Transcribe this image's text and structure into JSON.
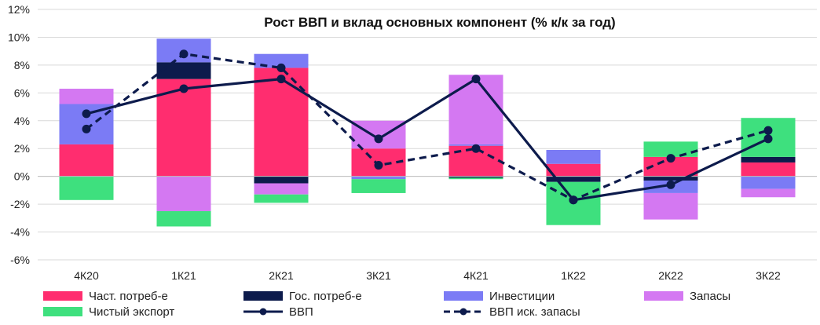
{
  "chart_data": {
    "type": "bar",
    "title": "Рост ВВП и вклад основных компонент (% к/к за год)",
    "categories": [
      "4К20",
      "1К21",
      "2К21",
      "3К21",
      "4К21",
      "1К22",
      "2К22",
      "3К22"
    ],
    "ylim": [
      -6,
      12
    ],
    "yticks": [
      -6,
      -4,
      -2,
      0,
      2,
      4,
      6,
      8,
      10,
      12
    ],
    "ytick_labels": [
      "-6%",
      "-4%",
      "-2%",
      "0%",
      "2%",
      "4%",
      "6%",
      "8%",
      "10%",
      "12%"
    ],
    "stacked": true,
    "grid": true,
    "legend_position": "bottom",
    "bar_series": [
      {
        "name": "Част. потреб-е",
        "color": "#ff2d6f",
        "values": [
          2.3,
          7.0,
          7.8,
          2.0,
          2.2,
          0.9,
          1.4,
          1.0
        ]
      },
      {
        "name": "Гос. потреб-е",
        "color": "#0d1b4c",
        "values": [
          0.0,
          1.2,
          -0.5,
          0.0,
          -0.1,
          -0.4,
          -0.3,
          0.4
        ]
      },
      {
        "name": "Инвестиции",
        "color": "#7b7bf5",
        "values": [
          2.9,
          1.7,
          1.0,
          -0.2,
          0.1,
          1.0,
          -0.9,
          -0.9
        ]
      },
      {
        "name": "Запасы",
        "color": "#d478f2",
        "values": [
          1.1,
          -2.5,
          -0.8,
          2.0,
          5.0,
          0.0,
          -1.9,
          -0.6
        ]
      },
      {
        "name": "Чистый экспорт",
        "color": "#3ee07e",
        "values": [
          -1.7,
          -1.1,
          -0.6,
          -1.0,
          -0.1,
          -3.1,
          1.1,
          2.8
        ]
      }
    ],
    "line_series": [
      {
        "name": "ВВП",
        "color": "#0d1b4c",
        "style": "solid",
        "values": [
          4.5,
          6.3,
          7.0,
          2.7,
          7.0,
          -1.7,
          -0.6,
          2.7
        ]
      },
      {
        "name": "ВВП иск. запасы",
        "color": "#0d1b4c",
        "style": "dashed",
        "values": [
          3.4,
          8.8,
          7.8,
          0.8,
          2.0,
          -1.7,
          1.3,
          3.3
        ]
      }
    ]
  },
  "legend": {
    "items": [
      {
        "label": "Част. потреб-е",
        "kind": "box",
        "color": "#ff2d6f"
      },
      {
        "label": "Гос. потреб-е",
        "kind": "box",
        "color": "#0d1b4c"
      },
      {
        "label": "Инвестиции",
        "kind": "box",
        "color": "#7b7bf5"
      },
      {
        "label": "Запасы",
        "kind": "box",
        "color": "#d478f2"
      },
      {
        "label": "Чистый экспорт",
        "kind": "box",
        "color": "#3ee07e"
      },
      {
        "label": "ВВП",
        "kind": "line-solid",
        "color": "#0d1b4c"
      },
      {
        "label": "ВВП иск. запасы",
        "kind": "line-dashed",
        "color": "#0d1b4c"
      }
    ]
  }
}
